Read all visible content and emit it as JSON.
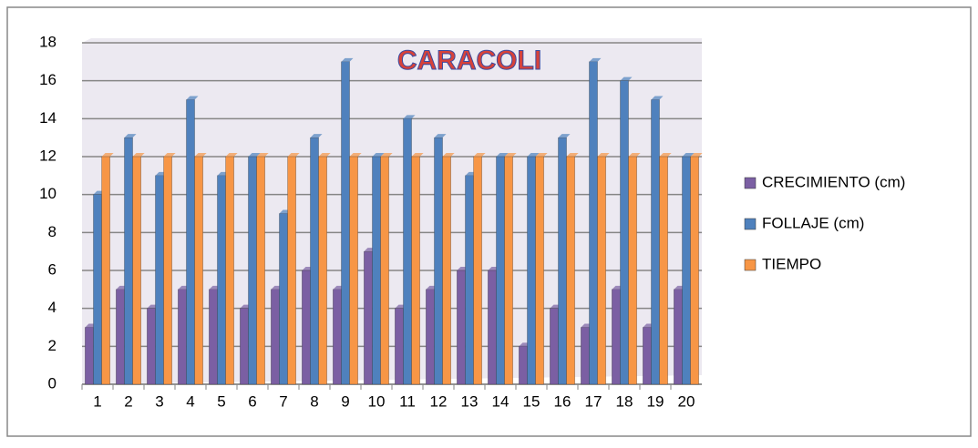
{
  "chart_data": {
    "type": "bar",
    "title": "CARACOLI",
    "categories": [
      "1",
      "2",
      "3",
      "4",
      "5",
      "6",
      "7",
      "8",
      "9",
      "10",
      "11",
      "12",
      "13",
      "14",
      "15",
      "16",
      "17",
      "18",
      "19",
      "20"
    ],
    "series": [
      {
        "name": "CRECIMIENTO (cm)",
        "color": "#7b5fa3",
        "values": [
          3,
          5,
          4,
          5,
          5,
          4,
          5,
          6,
          5,
          7,
          4,
          5,
          6,
          6,
          2,
          4,
          3,
          5,
          3,
          5
        ]
      },
      {
        "name": "FOLLAJE (cm)",
        "color": "#4f81bd",
        "values": [
          10,
          13,
          11,
          15,
          11,
          12,
          9,
          13,
          17,
          12,
          14,
          13,
          11,
          12,
          12,
          13,
          17,
          16,
          15,
          12
        ]
      },
      {
        "name": "TIEMPO",
        "color": "#f79646",
        "values": [
          12,
          12,
          12,
          12,
          12,
          12,
          12,
          12,
          12,
          12,
          12,
          12,
          12,
          12,
          12,
          12,
          12,
          12,
          12,
          12
        ]
      }
    ],
    "ylim": [
      0,
      18
    ],
    "yticks": [
      0,
      2,
      4,
      6,
      8,
      10,
      12,
      14,
      16,
      18
    ],
    "grid": true,
    "legend": "right"
  }
}
